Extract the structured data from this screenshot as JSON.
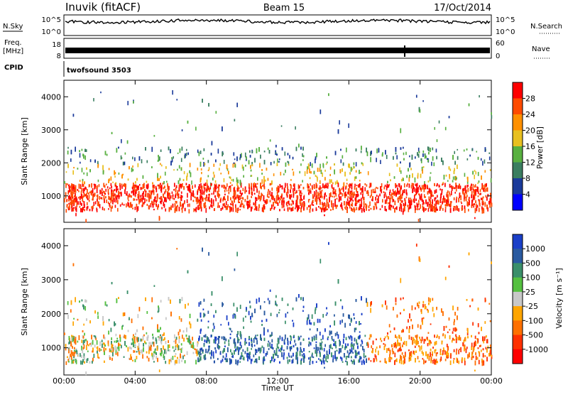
{
  "header": {
    "station": "Inuvik (fitACF)",
    "beam": "Beam 15",
    "date": "17/Oct/2014"
  },
  "top_strip": {
    "nsky_label": "N.Sky",
    "nsky_ticks": [
      "10^5",
      "10^0"
    ],
    "nsearch_label": "N.Search",
    "nsearch_ticks": [
      "10^5",
      "10^0"
    ],
    "freq_label": "Freq.",
    "freq_unit": "[MHz]",
    "freq_ticks": [
      "18",
      "8"
    ],
    "nave_label": "Nave",
    "nave_ticks": [
      "60",
      "0"
    ],
    "cpid_label": "CPID",
    "cpid_value": "twofsound 3503"
  },
  "chart_data": [
    {
      "type": "heatmap",
      "name": "power",
      "ylabel": "Slant Range [km]",
      "xlabel": "",
      "xlim": [
        0,
        24
      ],
      "ylim": [
        200,
        4500
      ],
      "yticks": [
        "1000",
        "2000",
        "3000",
        "4000"
      ],
      "xticks": [
        "00:00",
        "04:00",
        "08:00",
        "12:00",
        "16:00",
        "20:00",
        "00:00"
      ],
      "colorbar": {
        "label": "Power [dB]",
        "ticks": [
          "28",
          "24",
          "20",
          "16",
          "12",
          "8",
          "4"
        ],
        "colors": [
          "#ff0000",
          "#ff4b00",
          "#ff9000",
          "#e8c020",
          "#58b040",
          "#3a7e60",
          "#1a3a9a",
          "#0000ff"
        ]
      }
    },
    {
      "type": "heatmap",
      "name": "velocity",
      "ylabel": "Slant Range [km]",
      "xlabel": "Time UT",
      "xlim": [
        0,
        24
      ],
      "ylim": [
        200,
        4500
      ],
      "yticks": [
        "1000",
        "2000",
        "3000",
        "4000"
      ],
      "xticks": [
        "00:00",
        "04:00",
        "08:00",
        "12:00",
        "16:00",
        "20:00",
        "00:00"
      ],
      "colorbar": {
        "label": "Velocity [m s⁻¹]",
        "ticks": [
          "1000",
          "500",
          "100",
          "25",
          "-25",
          "-100",
          "-500",
          "-1000"
        ],
        "colors": [
          "#1a3fc8",
          "#2a5aa0",
          "#3a8f6a",
          "#55c040",
          "#c8c8c8",
          "#ffa500",
          "#ff7000",
          "#ff3000",
          "#ff0000"
        ]
      }
    }
  ]
}
